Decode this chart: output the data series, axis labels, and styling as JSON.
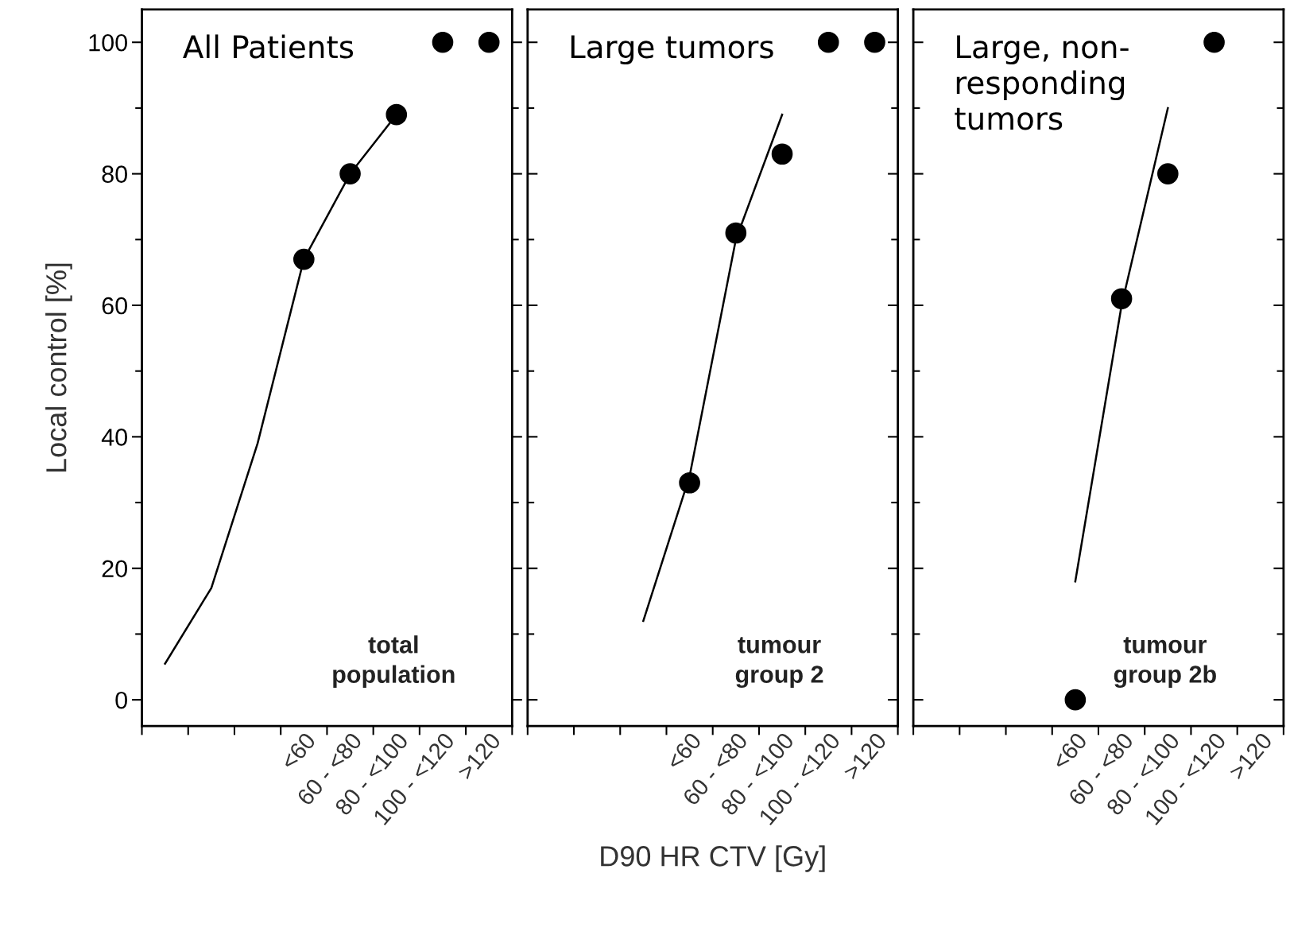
{
  "chart_data": [
    {
      "type": "scatter",
      "ylabel": "Local control [%]",
      "annotations": [
        "All Patients",
        "total\npopulation"
      ],
      "ylim": [
        -4,
        105
      ],
      "categories": [
        null,
        null,
        null,
        "<60",
        "60 - <80",
        "80 - <100",
        "100 - <120",
        ">120"
      ],
      "yticks": [
        0,
        {
          "value": 10,
          "label": null
        },
        20,
        {
          "value": 30,
          "label": null
        },
        40,
        {
          "value": 50,
          "label": null
        },
        60,
        {
          "value": 70,
          "label": null
        },
        80,
        {
          "value": 90,
          "label": null
        },
        100
      ],
      "grid": false,
      "legend": false,
      "marker": "circle",
      "series": [
        {
          "color": "#000000",
          "values": [
            null,
            null,
            null,
            67,
            80,
            89,
            100,
            100
          ]
        },
        {
          "type": "line",
          "color": "#000000",
          "marker": "none",
          "values": [
            5.5,
            17,
            39,
            67,
            80,
            89,
            null,
            null
          ]
        }
      ]
    },
    {
      "type": "scatter",
      "xlabel": "D90 HR CTV [Gy]",
      "annotations": [
        "Large tumors",
        "tumour\ngroup 2"
      ],
      "ylim": [
        -4,
        105
      ],
      "tick_labels": "x",
      "categories": [
        null,
        null,
        null,
        "<60",
        "60 - <80",
        "80 - <100",
        "100 - <120",
        ">120"
      ],
      "yticks": [
        0,
        {
          "value": 10,
          "label": null
        },
        20,
        {
          "value": 30,
          "label": null
        },
        40,
        {
          "value": 50,
          "label": null
        },
        60,
        {
          "value": 70,
          "label": null
        },
        80,
        {
          "value": 90,
          "label": null
        },
        100
      ],
      "grid": false,
      "legend": false,
      "marker": "circle",
      "series": [
        {
          "color": "#000000",
          "values": [
            null,
            null,
            null,
            33,
            71,
            83,
            100,
            100
          ]
        },
        {
          "type": "line",
          "color": "#000000",
          "marker": "none",
          "values": [
            null,
            null,
            12,
            34,
            70,
            89,
            null,
            null
          ]
        }
      ]
    },
    {
      "type": "scatter",
      "annotations": [
        "Large, non-\nresponding\ntumors",
        "tumour\ngroup 2b"
      ],
      "ylim": [
        -4,
        105
      ],
      "tick_labels": "x",
      "categories": [
        null,
        null,
        null,
        "<60",
        "60 - <80",
        "80 - <100",
        "100 - <120",
        ">120"
      ],
      "yticks": [
        0,
        {
          "value": 10,
          "label": null
        },
        20,
        {
          "value": 30,
          "label": null
        },
        40,
        {
          "value": 50,
          "label": null
        },
        60,
        {
          "value": 70,
          "label": null
        },
        80,
        {
          "value": 90,
          "label": null
        },
        100
      ],
      "grid": false,
      "legend": false,
      "marker": "circle",
      "series": [
        {
          "color": "#000000",
          "values": [
            null,
            null,
            null,
            0,
            61,
            80,
            100,
            null
          ]
        },
        {
          "type": "line",
          "color": "#000000",
          "marker": "none",
          "values": [
            null,
            null,
            null,
            18,
            60,
            90,
            null,
            null
          ]
        }
      ]
    }
  ]
}
